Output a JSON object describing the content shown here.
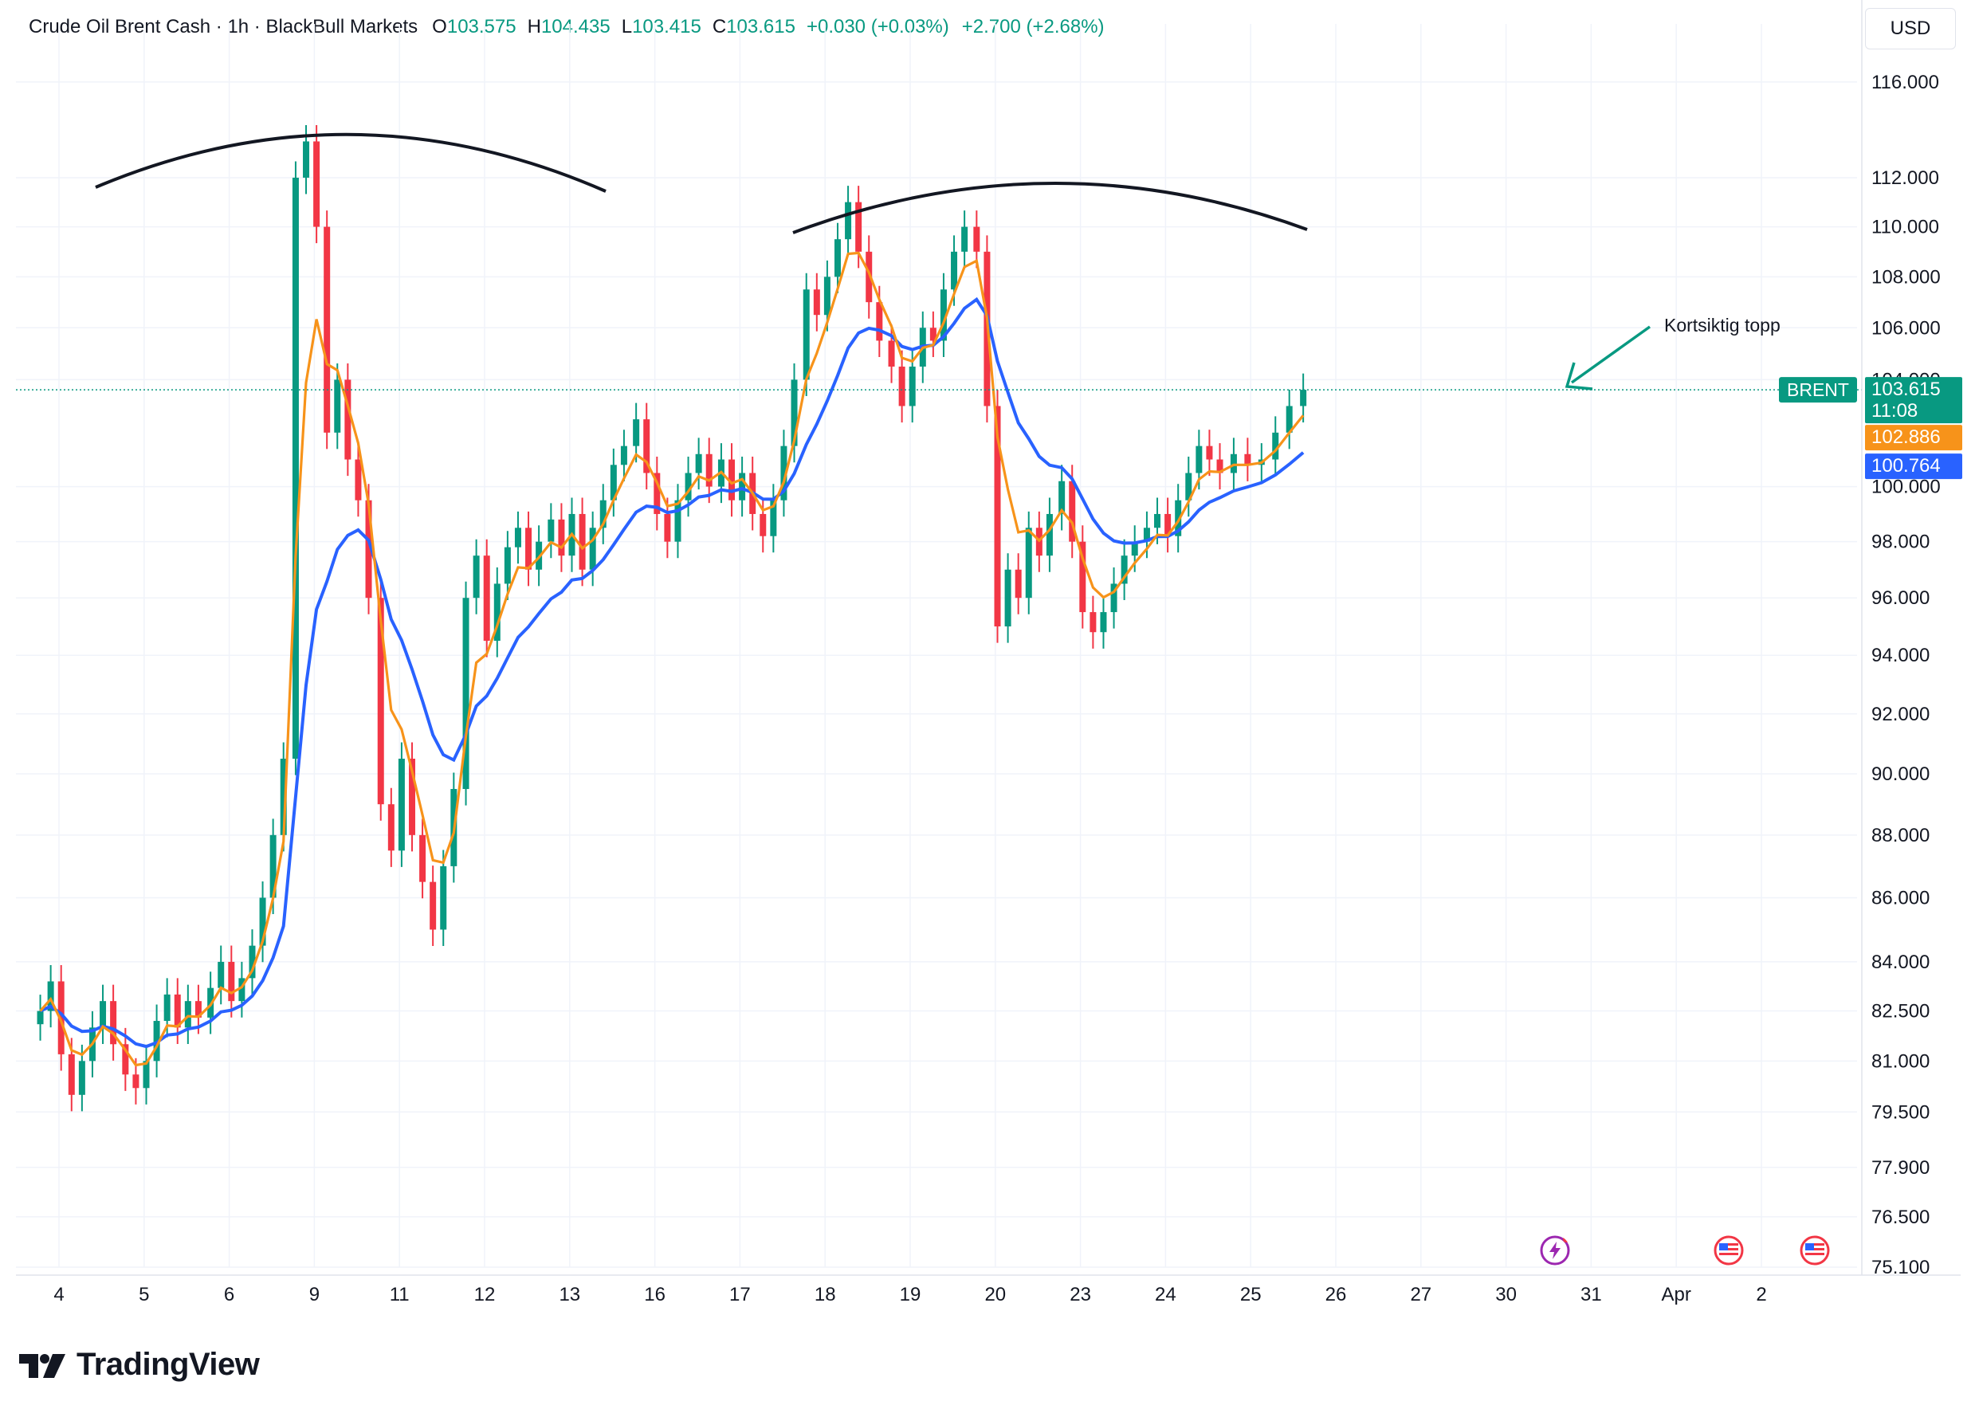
{
  "header": {
    "symbol": "Crude Oil Brent Cash · 1h · BlackBull Markets",
    "o_label": "O",
    "o_value": "103.575",
    "h_label": "H",
    "h_value": "104.435",
    "l_label": "L",
    "l_value": "103.415",
    "c_label": "C",
    "c_value": "103.615",
    "change": "+0.030 (+0.03%)",
    "change2": "+2.700 (+2.68%)"
  },
  "currency": "USD",
  "colors": {
    "up": "#089981",
    "down": "#f23645",
    "ma_fast": "#f7931a",
    "ma_slow": "#2962ff",
    "grid": "#f0f3fa",
    "text": "#131722",
    "last_price_line": "#089981"
  },
  "logo_text": "TradingView",
  "icons": [
    "tradingview-logo-icon",
    "lightning-event-icon",
    "us-flag-event-icon",
    "us-flag-event-icon"
  ],
  "chart_data": {
    "type": "candlestick",
    "title": "Crude Oil Brent Cash · 1h · BlackBull Markets",
    "y_scale": "log",
    "ylim": [
      75.1,
      118.5
    ],
    "y_ticks": [
      "116.000",
      "112.000",
      "110.000",
      "108.000",
      "106.000",
      "104.000",
      "100.000",
      "98.000",
      "96.000",
      "94.000",
      "92.000",
      "90.000",
      "88.000",
      "86.000",
      "84.000",
      "82.500",
      "81.000",
      "79.500",
      "77.900",
      "76.500",
      "75.100"
    ],
    "x_ticks": [
      "4",
      "5",
      "6",
      "9",
      "11",
      "12",
      "13",
      "16",
      "17",
      "18",
      "19",
      "20",
      "23",
      "24",
      "25",
      "26",
      "27",
      "30",
      "31",
      "Apr",
      "2"
    ],
    "grid": true,
    "series": [
      {
        "name": "BRENT",
        "kind": "price",
        "last": "103.615",
        "countdown": "11:08",
        "path": [
          [
            "4",
            82.5
          ],
          [
            "4",
            83.4
          ],
          [
            "4",
            81.2
          ],
          [
            "4",
            80.0
          ],
          [
            "4",
            81.0
          ],
          [
            "4",
            82.0
          ],
          [
            "4",
            82.8
          ],
          [
            "4",
            81.5
          ],
          [
            "5",
            80.6
          ],
          [
            "5",
            80.2
          ],
          [
            "5",
            81.0
          ],
          [
            "5",
            82.2
          ],
          [
            "5",
            83.0
          ],
          [
            "5",
            82.0
          ],
          [
            "5",
            82.8
          ],
          [
            "5",
            82.3
          ],
          [
            "6",
            83.2
          ],
          [
            "6",
            84.0
          ],
          [
            "6",
            82.8
          ],
          [
            "6",
            83.5
          ],
          [
            "6",
            84.5
          ],
          [
            "6",
            86.0
          ],
          [
            "6",
            88.0
          ],
          [
            "6",
            90.5
          ],
          [
            "9",
            112.0
          ],
          [
            "9",
            113.5
          ],
          [
            "9",
            110.0
          ],
          [
            "9",
            102.0
          ],
          [
            "9",
            104.0
          ],
          [
            "9",
            101.0
          ],
          [
            "9",
            99.5
          ],
          [
            "9",
            96.0
          ],
          [
            "11",
            89.0
          ],
          [
            "11",
            87.5
          ],
          [
            "11",
            90.5
          ],
          [
            "11",
            88.0
          ],
          [
            "11",
            86.5
          ],
          [
            "11",
            85.0
          ],
          [
            "11",
            87.0
          ],
          [
            "11",
            89.5
          ],
          [
            "12",
            96.0
          ],
          [
            "12",
            97.5
          ],
          [
            "12",
            94.5
          ],
          [
            "12",
            96.5
          ],
          [
            "12",
            97.8
          ],
          [
            "12",
            98.5
          ],
          [
            "12",
            97.0
          ],
          [
            "12",
            98.0
          ],
          [
            "13",
            98.8
          ],
          [
            "13",
            97.5
          ],
          [
            "13",
            99.0
          ],
          [
            "13",
            97.0
          ],
          [
            "13",
            98.5
          ],
          [
            "13",
            99.5
          ],
          [
            "13",
            100.8
          ],
          [
            "13",
            101.5
          ],
          [
            "16",
            102.5
          ],
          [
            "16",
            100.5
          ],
          [
            "16",
            99.0
          ],
          [
            "16",
            98.0
          ],
          [
            "16",
            99.5
          ],
          [
            "16",
            100.5
          ],
          [
            "16",
            101.2
          ],
          [
            "16",
            100.0
          ],
          [
            "17",
            101.0
          ],
          [
            "17",
            99.5
          ],
          [
            "17",
            100.5
          ],
          [
            "17",
            99.0
          ],
          [
            "17",
            98.2
          ],
          [
            "17",
            99.5
          ],
          [
            "17",
            101.5
          ],
          [
            "17",
            104.0
          ],
          [
            "18",
            107.5
          ],
          [
            "18",
            106.5
          ],
          [
            "18",
            108.0
          ],
          [
            "18",
            109.5
          ],
          [
            "18",
            111.0
          ],
          [
            "18",
            109.0
          ],
          [
            "18",
            107.0
          ],
          [
            "18",
            105.5
          ],
          [
            "19",
            104.5
          ],
          [
            "19",
            103.0
          ],
          [
            "19",
            104.5
          ],
          [
            "19",
            106.0
          ],
          [
            "19",
            105.5
          ],
          [
            "19",
            107.5
          ],
          [
            "19",
            109.0
          ],
          [
            "19",
            110.0
          ],
          [
            "20",
            109.0
          ],
          [
            "20",
            103.0
          ],
          [
            "20",
            95.0
          ],
          [
            "20",
            97.0
          ],
          [
            "20",
            96.0
          ],
          [
            "20",
            98.5
          ],
          [
            "20",
            97.5
          ],
          [
            "20",
            99.0
          ],
          [
            "23",
            100.2
          ],
          [
            "23",
            98.0
          ],
          [
            "23",
            95.5
          ],
          [
            "23",
            94.8
          ],
          [
            "23",
            95.5
          ],
          [
            "23",
            96.5
          ],
          [
            "23",
            97.5
          ],
          [
            "23",
            98.0
          ],
          [
            "24",
            98.5
          ],
          [
            "24",
            99.0
          ],
          [
            "24",
            98.2
          ],
          [
            "24",
            99.5
          ],
          [
            "24",
            100.5
          ],
          [
            "24",
            101.5
          ],
          [
            "24",
            101.0
          ],
          [
            "24",
            100.5
          ],
          [
            "25",
            101.2
          ],
          [
            "25",
            100.8
          ],
          [
            "25",
            101.0
          ],
          [
            "25",
            102.0
          ],
          [
            "25",
            103.0
          ],
          [
            "25",
            103.615
          ]
        ]
      },
      {
        "name": "102.886",
        "kind": "ma_fast",
        "last": "102.886"
      },
      {
        "name": "100.764",
        "kind": "ma_slow",
        "last": "100.764"
      }
    ],
    "annotations": [
      {
        "text": "Kortsiktig topp",
        "type": "arrow-label"
      },
      {
        "type": "arc",
        "location": "over first peak"
      },
      {
        "type": "arc",
        "location": "over second peak"
      }
    ],
    "legend": "none"
  }
}
